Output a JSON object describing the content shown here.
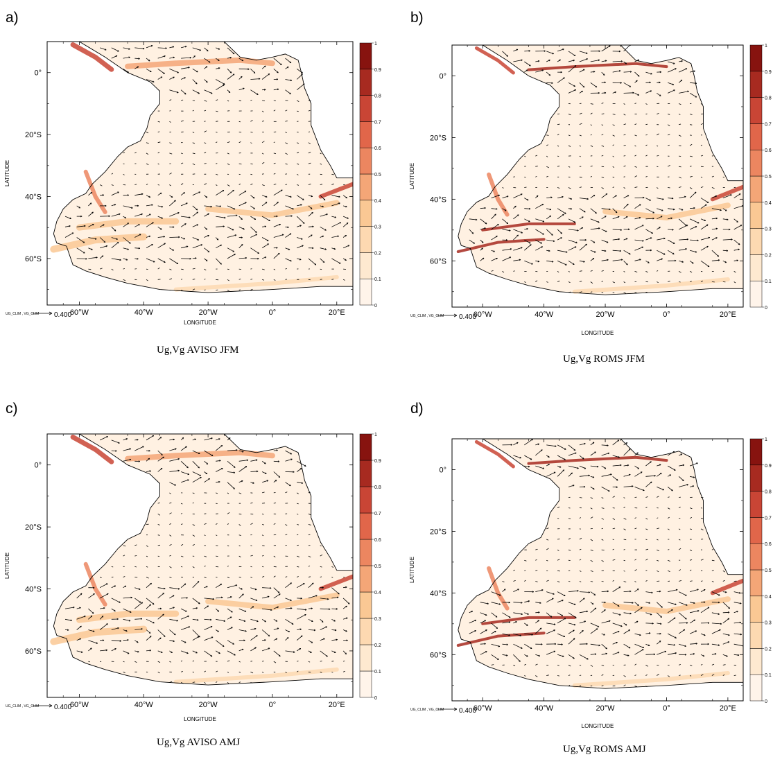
{
  "colorbar": {
    "labels": [
      "1",
      "0.9",
      "0.8",
      "0.7",
      "0.6",
      "0.5",
      "0.4",
      "0.3",
      "0.2",
      "0.1",
      "0"
    ],
    "colors": [
      "#fff4ea",
      "#fee9d0",
      "#fdd9b1",
      "#fac894",
      "#f4a677",
      "#ec8660",
      "#e1664a",
      "#c94535",
      "#a72a20",
      "#87130f"
    ]
  },
  "axes": {
    "x_ticks": [
      "60°W",
      "40°W",
      "20°W",
      "0°",
      "20°E"
    ],
    "y_ticks": [
      "0°",
      "20°S",
      "40°S",
      "60°S"
    ],
    "xlabel": "LONGITUDE",
    "ylabel": "LATITUDE",
    "ref_label": "UG_CLIM , VG_CLIM",
    "ref_value": "0.400"
  },
  "panels": [
    {
      "id": "a",
      "letter": "a)",
      "caption": "Ug,Vg AVISO JFM",
      "model": "aviso",
      "season": "jfm"
    },
    {
      "id": "b",
      "letter": "b)",
      "caption": "Ug,Vg ROMS JFM",
      "model": "roms",
      "season": "jfm"
    },
    {
      "id": "c",
      "letter": "c)",
      "caption": "Ug,Vg AVISO AMJ",
      "model": "aviso",
      "season": "amj"
    },
    {
      "id": "d",
      "letter": "d)",
      "caption": "Ug,Vg ROMS AMJ",
      "model": "roms",
      "season": "amj"
    }
  ]
}
